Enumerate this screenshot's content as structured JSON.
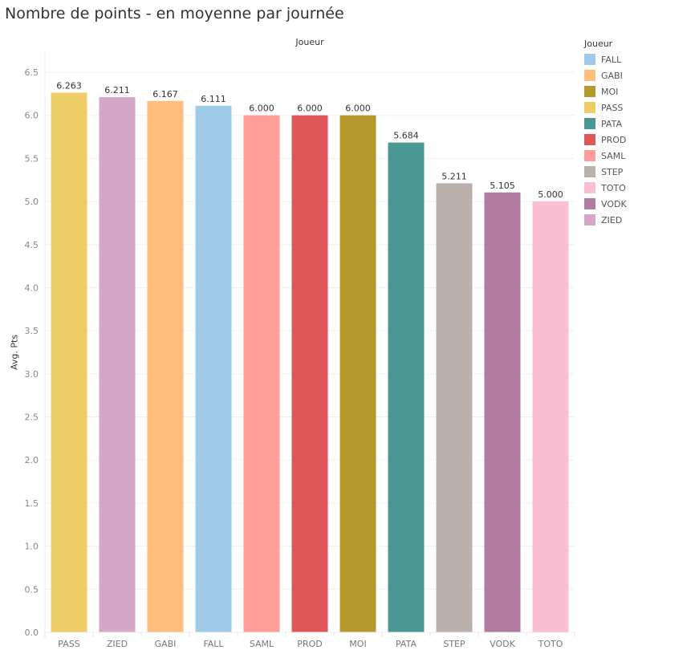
{
  "title": "Nombre de points - en moyenne par journée",
  "chart_data": {
    "type": "bar",
    "title": "Nombre de points - en moyenne par journée",
    "column_header": "Joueur",
    "xlabel": "",
    "ylabel": "Avg. Pts",
    "ylim": [
      0,
      6.5
    ],
    "yticks": [
      "0.0",
      "0.5",
      "1.0",
      "1.5",
      "2.0",
      "2.5",
      "3.0",
      "3.5",
      "4.0",
      "4.5",
      "5.0",
      "5.5",
      "6.0",
      "6.5"
    ],
    "ytick_values": [
      0,
      0.5,
      1,
      1.5,
      2,
      2.5,
      3,
      3.5,
      4,
      4.5,
      5,
      5.5,
      6,
      6.5
    ],
    "grid": true,
    "categories": [
      "PASS",
      "ZIED",
      "GABI",
      "FALL",
      "SAML",
      "PROD",
      "MOI",
      "PATA",
      "STEP",
      "VODK",
      "TOTO"
    ],
    "values": [
      6.263,
      6.211,
      6.167,
      6.111,
      6.0,
      6.0,
      6.0,
      5.684,
      5.211,
      5.105,
      5.0
    ],
    "value_labels": [
      "6.263",
      "6.211",
      "6.167",
      "6.111",
      "6.000",
      "6.000",
      "6.000",
      "5.684",
      "5.211",
      "5.105",
      "5.000"
    ],
    "colors": {
      "PASS": "#EECC66",
      "ZIED": "#D4A6C8",
      "GABI": "#FFBE7D",
      "FALL": "#A0CBE8",
      "SAML": "#FF9D9A",
      "PROD": "#E15759",
      "MOI": "#B6992D",
      "PATA": "#499894",
      "STEP": "#BAB0AC",
      "VODK": "#B07AA1",
      "TOTO": "#FABFD2"
    },
    "legend": {
      "title": "Joueur",
      "position": "right",
      "items": [
        "FALL",
        "GABI",
        "MOI",
        "PASS",
        "PATA",
        "PROD",
        "SAML",
        "STEP",
        "TOTO",
        "VODK",
        "ZIED"
      ]
    }
  }
}
